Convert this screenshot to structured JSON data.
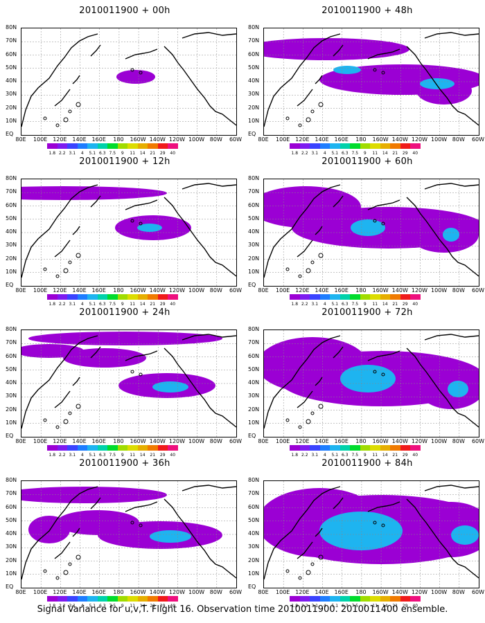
{
  "panels": [
    {
      "title": "2010011900 + 00h",
      "intensity": 0
    },
    {
      "title": "2010011900 + 12h",
      "intensity": 1
    },
    {
      "title": "2010011900 + 24h",
      "intensity": 2
    },
    {
      "title": "2010011900 + 36h",
      "intensity": 3
    },
    {
      "title": "2010011900 + 48h",
      "intensity": 4
    },
    {
      "title": "2010011900 + 60h",
      "intensity": 5
    },
    {
      "title": "2010011900 + 72h",
      "intensity": 6
    },
    {
      "title": "2010011900 + 84h",
      "intensity": 7
    }
  ],
  "lat_labels": [
    "80N",
    "70N",
    "60N",
    "50N",
    "40N",
    "30N",
    "20N",
    "10N",
    "EQ"
  ],
  "lon_labels": [
    "80E",
    "100E",
    "120E",
    "140E",
    "160E",
    "180",
    "160W",
    "140W",
    "120W",
    "100W",
    "80W",
    "60W"
  ],
  "colorbar": {
    "labels": [
      "1.8",
      "2.2",
      "3.1",
      "4",
      "5.1",
      "6.3",
      "7.5",
      "9",
      "11",
      "14",
      "21",
      "29",
      "40"
    ],
    "colors": [
      "#9b00d4",
      "#7d1bf0",
      "#3a43ff",
      "#1e7dff",
      "#1eb4f0",
      "#00d2aa",
      "#00dc2c",
      "#a0dc00",
      "#dcdc00",
      "#e6ae00",
      "#f07a00",
      "#f01a1a",
      "#ee0f7e"
    ]
  },
  "footer": "Signal Variance for u,v,T. Flight 16. Observation time 2010011900. 2010011400 ensemble."
}
